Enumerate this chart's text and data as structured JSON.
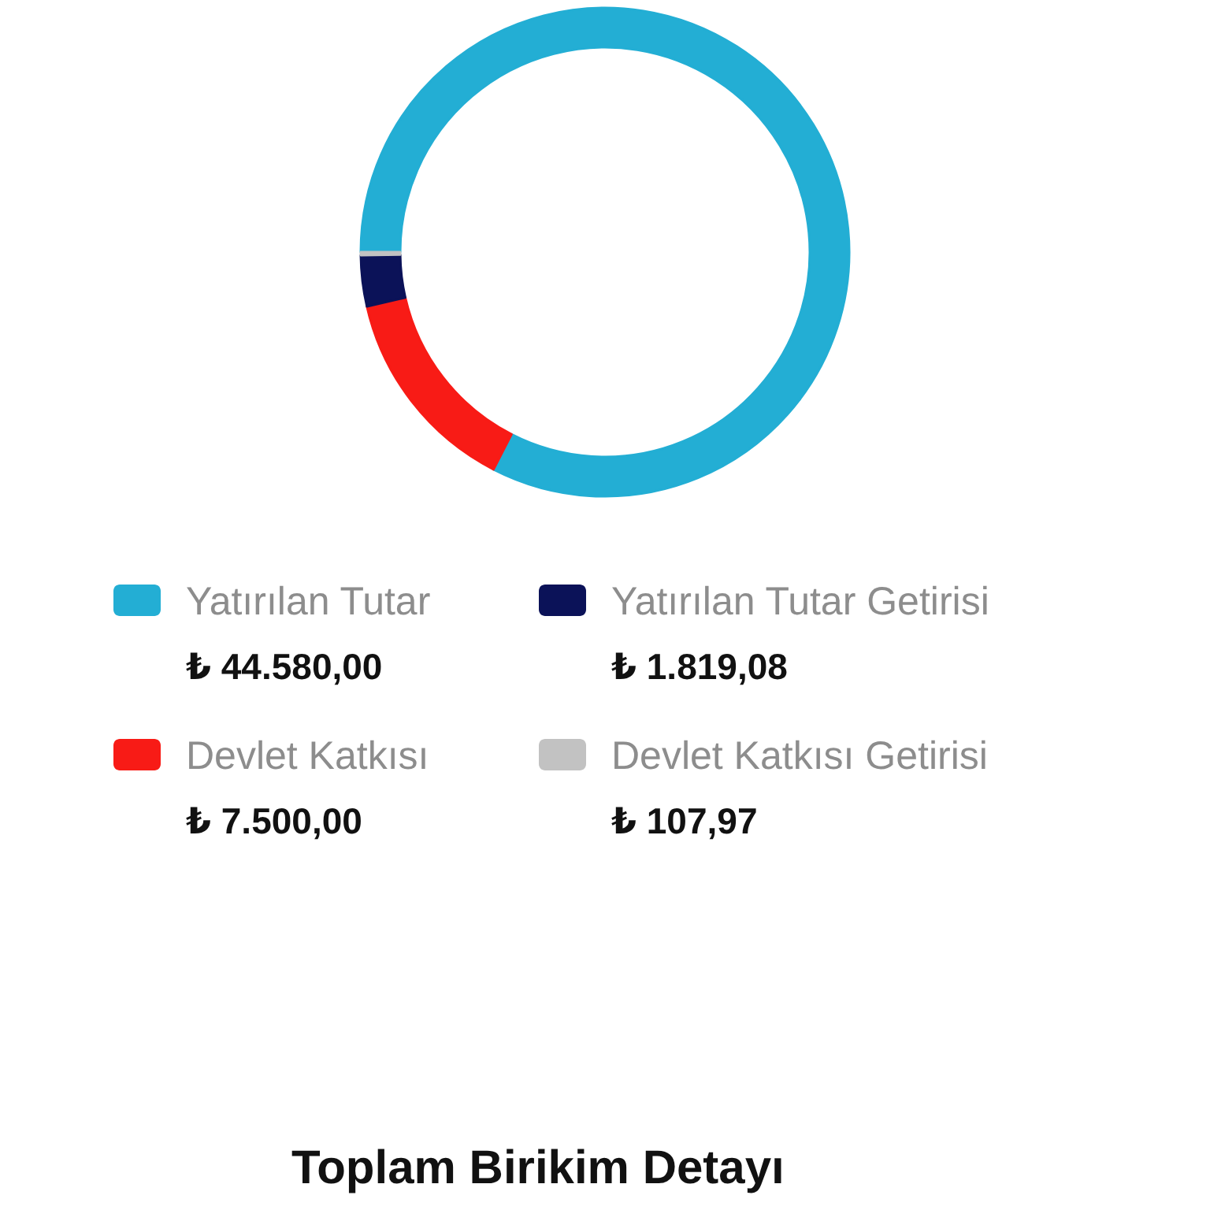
{
  "chart_data": {
    "type": "donut",
    "categories": [
      "Yatırılan Tutar",
      "Devlet Katkısı",
      "Yatırılan Tutar Getirisi",
      "Devlet Katkısı Getirisi"
    ],
    "values": [
      44580,
      7500,
      1819.08,
      107.97
    ],
    "colors": [
      "#23aed4",
      "#f81b16",
      "#0b1258",
      "#c2c2c2"
    ],
    "value_labels": [
      "₺ 44.580,00",
      "₺ 7.500,00",
      "₺ 1.819,08",
      "₺ 107,97"
    ],
    "legend": "bottom",
    "annotations": [
      "Toplam Birikim Detayı"
    ]
  }
}
